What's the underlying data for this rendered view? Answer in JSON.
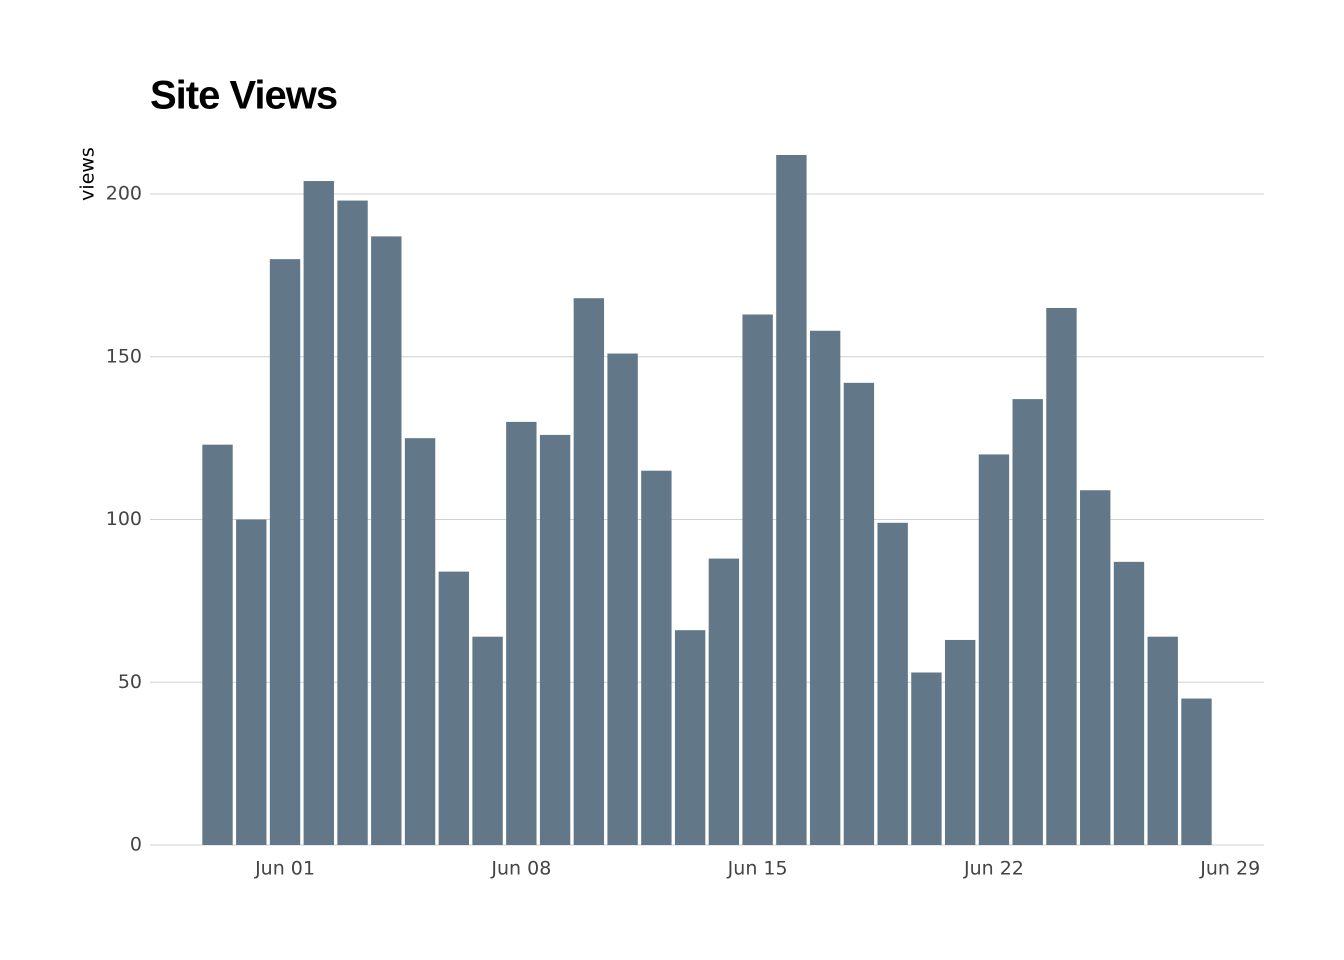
{
  "chart_data": {
    "type": "bar",
    "title": "Site Views",
    "y_label": "views",
    "values": [
      123,
      100,
      180,
      204,
      198,
      187,
      125,
      84,
      64,
      130,
      126,
      168,
      151,
      115,
      66,
      88,
      163,
      212,
      158,
      142,
      99,
      53,
      63,
      120,
      137,
      165,
      109,
      87,
      64,
      45
    ],
    "color": "#627888",
    "xlim": [
      -2,
      31
    ],
    "xticks": [
      {
        "value": 2,
        "label": "Jun 01"
      },
      {
        "value": 9,
        "label": "Jun 08"
      },
      {
        "value": 16,
        "label": "Jun 15"
      },
      {
        "value": 23,
        "label": "Jun 22"
      },
      {
        "value": 30,
        "label": "Jun 29"
      }
    ],
    "ylim": [
      0,
      212
    ],
    "yticks": [
      0,
      50,
      100,
      150,
      200
    ],
    "grid": true
  }
}
